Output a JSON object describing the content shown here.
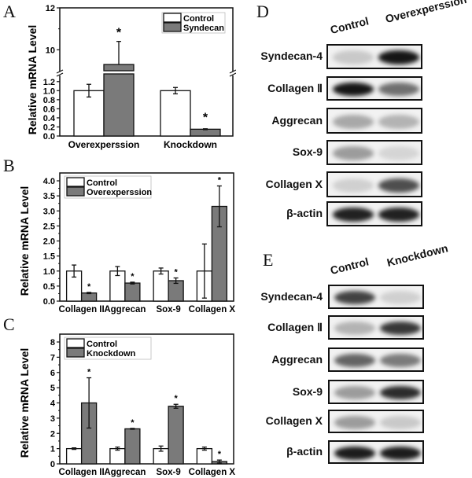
{
  "panels": {
    "A": {
      "letter": "A"
    },
    "B": {
      "letter": "B"
    },
    "C": {
      "letter": "C"
    },
    "D": {
      "letter": "D",
      "lanes": [
        "Control",
        "Overexperssion"
      ]
    },
    "E": {
      "letter": "E",
      "lanes": [
        "Control",
        "Knockdown"
      ]
    }
  },
  "colors": {
    "control": "#ffffff",
    "treated": "#7a7a7a",
    "axis": "#111111"
  },
  "chart_data": [
    {
      "panel": "A",
      "type": "bar",
      "title": "",
      "xlabel": "",
      "ylabel": "Relative mRNA Level",
      "categories": [
        "Overexperssion",
        "Knockdown"
      ],
      "series": [
        {
          "name": "Control",
          "values": [
            1.0,
            1.0
          ],
          "errors": [
            0.14,
            0.07
          ]
        },
        {
          "name": "Syndecan",
          "values": [
            9.3,
            0.15
          ],
          "errors": [
            1.1,
            0.01
          ]
        }
      ],
      "significance": [
        "*",
        "*"
      ],
      "axis_break": {
        "lower": [
          0.0,
          1.3
        ],
        "upper": [
          9.0,
          12.0
        ]
      },
      "lower_ticks": [
        "0.0",
        "0.2",
        "0.4",
        "0.6",
        "0.8",
        "1.0",
        "1.2"
      ],
      "upper_ticks": [
        "10",
        "12"
      ],
      "legend_position": "upper right"
    },
    {
      "panel": "B",
      "type": "bar",
      "ylabel": "Relative mRNA Level",
      "categories": [
        "Collagen II",
        "Aggrecan",
        "Sox-9",
        "Collagen X"
      ],
      "series": [
        {
          "name": "Control",
          "values": [
            1.0,
            1.0,
            1.0,
            1.0
          ],
          "errors": [
            0.2,
            0.15,
            0.1,
            0.9
          ]
        },
        {
          "name": "Overexperssion",
          "values": [
            0.27,
            0.6,
            0.68,
            3.15
          ],
          "errors": [
            0.02,
            0.03,
            0.09,
            0.68
          ]
        }
      ],
      "significance": [
        "*",
        "*",
        "*",
        "*"
      ],
      "ylim": [
        0,
        4.0
      ],
      "ticks": [
        "0.0",
        "0.5",
        "1.0",
        "1.5",
        "2.0",
        "2.5",
        "3.0",
        "3.5",
        "4.0"
      ],
      "legend_position": "upper left"
    },
    {
      "panel": "C",
      "type": "bar",
      "ylabel": "Relative mRNA Level",
      "categories": [
        "Collagen II",
        "Aggrecan",
        "Sox-9",
        "Collagen X"
      ],
      "series": [
        {
          "name": "Control",
          "values": [
            1.0,
            1.0,
            1.0,
            1.0
          ],
          "errors": [
            0.05,
            0.1,
            0.17,
            0.1
          ]
        },
        {
          "name": "Knockdown",
          "values": [
            4.0,
            2.3,
            3.78,
            0.15
          ],
          "errors": [
            1.65,
            0.03,
            0.13,
            0.1
          ]
        }
      ],
      "significance": [
        "*",
        "*",
        "*",
        "*"
      ],
      "ylim": [
        0,
        8
      ],
      "ticks": [
        "0",
        "1",
        "2",
        "3",
        "4",
        "5",
        "6",
        "7",
        "8"
      ],
      "legend_position": "upper left"
    }
  ],
  "blots": {
    "D": {
      "rows": [
        {
          "label": "Syndecan-4",
          "lanes": [
            0.15,
            0.95
          ]
        },
        {
          "label": "Collagen Ⅱ",
          "lanes": [
            0.95,
            0.55
          ]
        },
        {
          "label": "Aggrecan",
          "lanes": [
            0.3,
            0.25
          ]
        },
        {
          "label": "Sox-9",
          "lanes": [
            0.35,
            0.1
          ]
        },
        {
          "label": "Collagen X",
          "lanes": [
            0.12,
            0.7
          ]
        },
        {
          "label": "β-actin",
          "lanes": [
            0.9,
            0.9
          ]
        }
      ]
    },
    "E": {
      "rows": [
        {
          "label": "Syndecan-4",
          "lanes": [
            0.75,
            0.12
          ]
        },
        {
          "label": "Collagen Ⅱ",
          "lanes": [
            0.25,
            0.8
          ]
        },
        {
          "label": "Aggrecan",
          "lanes": [
            0.6,
            0.5
          ]
        },
        {
          "label": "Sox-9",
          "lanes": [
            0.35,
            0.85
          ]
        },
        {
          "label": "Collagen X",
          "lanes": [
            0.35,
            0.15
          ]
        },
        {
          "label": "β-actin",
          "lanes": [
            0.92,
            0.92
          ]
        }
      ]
    }
  }
}
